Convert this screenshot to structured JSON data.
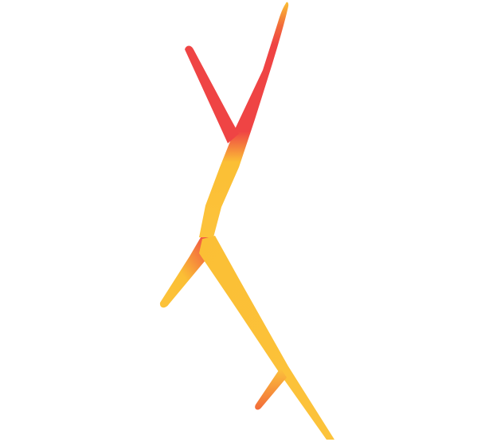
{
  "graphic": {
    "icon": "lightning-streak-logo",
    "colors": {
      "background": "#ffffff",
      "red": "#ef4444",
      "red_deep": "#ea3d45",
      "orange": "#f26b3a",
      "yellow": "#fbbf35",
      "yellow_light": "#fcc33b"
    }
  }
}
